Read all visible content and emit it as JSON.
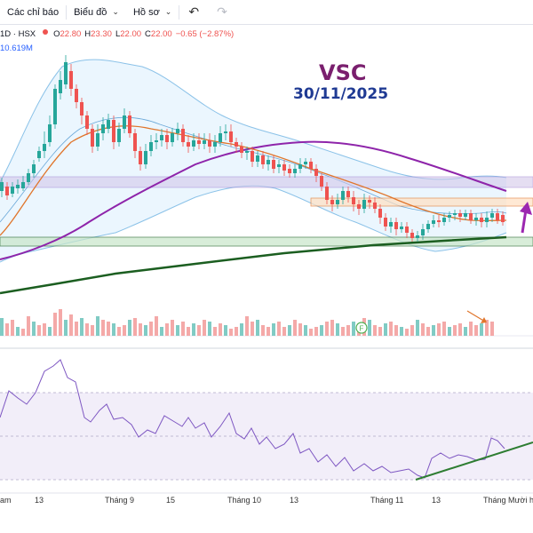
{
  "toolbar": {
    "indicators_label": "Các chỉ báo",
    "chart_label": "Biểu đồ",
    "profile_label": "Hồ sơ",
    "undo_icon": "undo-icon",
    "redo_icon": "redo-icon"
  },
  "legend": {
    "symbol": "1D · HSX",
    "o_label": "O",
    "o_value": "22.80",
    "h_label": "H",
    "h_value": "23.30",
    "l_label": "L",
    "l_value": "22.00",
    "c_label": "C",
    "c_value": "22.00",
    "change": "−0.65 (−2.87%)",
    "volume": "10.619M"
  },
  "overlay": {
    "title": "VSC",
    "date": "30/11/2025"
  },
  "xaxis": {
    "labels": [
      "am",
      "13",
      "Tháng 9",
      "15",
      "Tháng 10",
      "13",
      "Tháng 11",
      "13",
      "Tháng Mười hai"
    ]
  },
  "colors": {
    "up": "#26a69a",
    "down": "#ef5350",
    "bollinger": "#8bc2e8",
    "ma_short": "#e0752b",
    "ma_long": "#8e24aa",
    "trendline": "#1b5e20",
    "rsi": "#7e57c2",
    "arrow": "#9c27b0"
  }
}
